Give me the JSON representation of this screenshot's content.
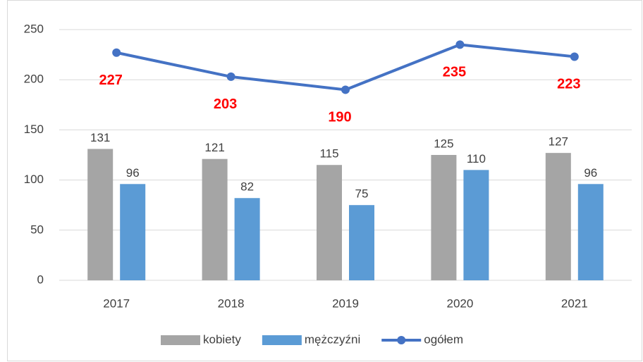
{
  "chart_data": {
    "type": "bar",
    "categories": [
      "2017",
      "2018",
      "2019",
      "2020",
      "2021"
    ],
    "series": [
      {
        "name": "kobiety",
        "color": "#a5a5a5",
        "values": [
          131,
          121,
          115,
          125,
          127
        ]
      },
      {
        "name": "mężczyźni",
        "color": "#5b9bd5",
        "values": [
          96,
          82,
          75,
          110,
          96
        ]
      },
      {
        "name": "ogółem",
        "color": "#4472c4",
        "type": "line",
        "values": [
          227,
          203,
          190,
          235,
          223
        ]
      }
    ],
    "ylim": [
      0,
      250
    ],
    "yticks": [
      0,
      50,
      100,
      150,
      200,
      250
    ],
    "grid": true,
    "legend": "bottom"
  }
}
